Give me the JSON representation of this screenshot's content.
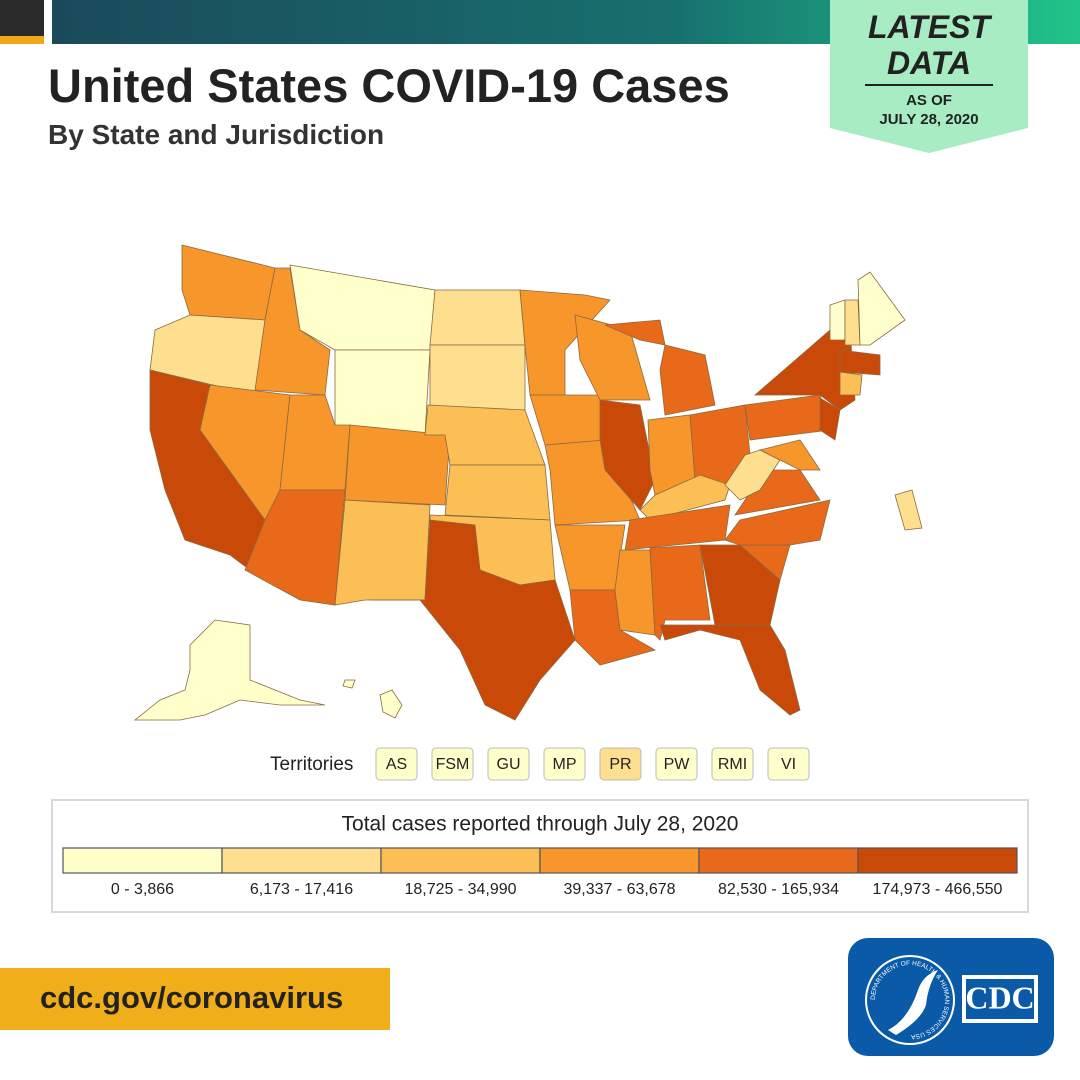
{
  "header": {
    "title": "United States COVID-19 Cases",
    "subtitle": "By State and Jurisdiction",
    "badge": {
      "line1": "LATEST",
      "line2": "DATA",
      "line3": "AS OF",
      "line4": "JULY 28, 2020"
    }
  },
  "territories": {
    "label": "Territories",
    "items": [
      {
        "label": "AS",
        "color": "#ffffcc"
      },
      {
        "label": "FSM",
        "color": "#ffffcc"
      },
      {
        "label": "GU",
        "color": "#ffffcc"
      },
      {
        "label": "MP",
        "color": "#ffffcc"
      },
      {
        "label": "PR",
        "color": "#fddf8f"
      },
      {
        "label": "PW",
        "color": "#ffffcc"
      },
      {
        "label": "RMI",
        "color": "#ffffcc"
      },
      {
        "label": "VI",
        "color": "#ffffcc"
      }
    ]
  },
  "legend": {
    "title": "Total cases reported through July 28, 2020",
    "items": [
      {
        "label": "0 - 3,866",
        "color": "#ffffcc"
      },
      {
        "label": "6,173 - 17,416",
        "color": "#fddf8f"
      },
      {
        "label": "18,725 - 34,990",
        "color": "#fbbf55"
      },
      {
        "label": "39,337 - 63,678",
        "color": "#f7962b"
      },
      {
        "label": "82,530 - 165,934",
        "color": "#e8691a"
      },
      {
        "label": "174,973 - 466,550",
        "color": "#c94a08"
      }
    ]
  },
  "footer": {
    "url": "cdc.gov/coronavirus",
    "logo": "CDC",
    "seal": "DEPARTMENT OF HEALTH & HUMAN SERVICES USA"
  }
}
